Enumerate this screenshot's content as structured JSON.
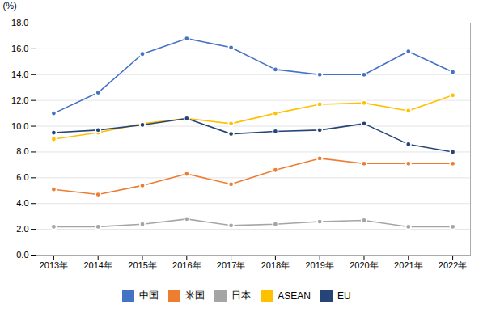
{
  "chart_data": {
    "type": "line",
    "x": [
      2013,
      2014,
      2015,
      2016,
      2017,
      2018,
      2019,
      2020,
      2021,
      2022
    ],
    "xlim": [
      2012.6,
      2022.4
    ],
    "xticks": [
      {
        "value": 2013,
        "label": "2013年"
      },
      {
        "value": 2014,
        "label": "2014年"
      },
      {
        "value": 2015,
        "label": "2015年"
      },
      {
        "value": 2016,
        "label": "2016年"
      },
      {
        "value": 2017,
        "label": "2017年"
      },
      {
        "value": 2018,
        "label": "2018年"
      },
      {
        "value": 2019,
        "label": "2019年"
      },
      {
        "value": 2020,
        "label": "2020年"
      },
      {
        "value": 2021,
        "label": "2021年"
      },
      {
        "value": 2022,
        "label": "2022年"
      }
    ],
    "ylim": [
      0,
      18
    ],
    "yticks": [
      {
        "value": 0,
        "label": "0.0"
      },
      {
        "value": 2,
        "label": "2.0"
      },
      {
        "value": 4,
        "label": "4.0"
      },
      {
        "value": 6,
        "label": "6.0"
      },
      {
        "value": 8,
        "label": "8.0"
      },
      {
        "value": 10,
        "label": "10.0"
      },
      {
        "value": 12,
        "label": "12.0"
      },
      {
        "value": 14,
        "label": "14.0"
      },
      {
        "value": 16,
        "label": "16.0"
      },
      {
        "value": 18,
        "label": "18.0"
      }
    ],
    "ylabel": "(%)",
    "grid": true,
    "legend": "bottom",
    "marker": "circle",
    "series": [
      {
        "name": "中国",
        "color": "#4472C4",
        "values": [
          11.0,
          12.6,
          15.6,
          16.8,
          16.1,
          14.4,
          14.0,
          14.0,
          15.8,
          14.2
        ]
      },
      {
        "name": "米国",
        "color": "#ED7D31",
        "values": [
          5.1,
          4.7,
          5.4,
          6.3,
          5.5,
          6.6,
          7.5,
          7.1,
          7.1,
          7.1
        ]
      },
      {
        "name": "日本",
        "color": "#A5A5A5",
        "values": [
          2.2,
          2.2,
          2.4,
          2.8,
          2.3,
          2.4,
          2.6,
          2.7,
          2.2,
          2.2
        ]
      },
      {
        "name": "ASEAN",
        "color": "#FFC000",
        "values": [
          9.0,
          9.5,
          10.2,
          10.6,
          10.2,
          11.0,
          11.7,
          11.8,
          11.2,
          12.4
        ]
      },
      {
        "name": "EU",
        "color": "#264478",
        "values": [
          9.5,
          9.7,
          10.1,
          10.6,
          9.4,
          9.6,
          9.7,
          10.2,
          8.6,
          8.0
        ]
      }
    ]
  }
}
